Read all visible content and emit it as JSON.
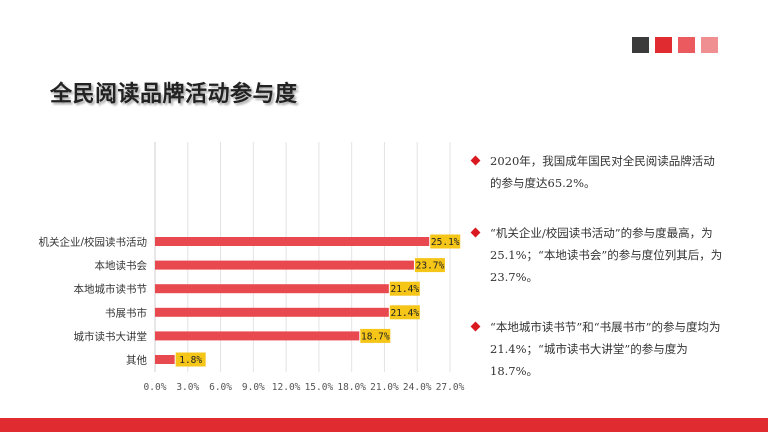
{
  "header": {
    "title": "全民阅读品牌活动参与度",
    "squares": [
      "#3b3b3b",
      "#e02b31",
      "#eb5a5f",
      "#f08f92"
    ]
  },
  "chart_data": {
    "type": "bar",
    "orientation": "horizontal",
    "categories": [
      "机关企业/校园读书活动",
      "本地读书会",
      "本地城市读书节",
      "书展书市",
      "城市读书大讲堂",
      "其他"
    ],
    "values": [
      25.1,
      23.7,
      21.4,
      21.4,
      18.7,
      1.8
    ],
    "data_labels": [
      "25.1%",
      "23.7%",
      "21.4%",
      "21.4%",
      "18.7%",
      "1.8%"
    ],
    "x_ticks": [
      "0.0%",
      "3.0%",
      "6.0%",
      "9.0%",
      "12.0%",
      "15.0%",
      "18.0%",
      "21.0%",
      "24.0%",
      "27.0%"
    ],
    "xlim": [
      0,
      27
    ],
    "grid": true,
    "bar_color": "#e8494f",
    "label_bg": "#f5c518"
  },
  "bullets": [
    "2020年，我国成年国民对全民阅读品牌活动的参与度达65.2%。",
    "“机关企业/校园读书活动”的参与度最高，为25.1%；“本地读书会”的参与度位列其后，为23.7%。",
    "“本地城市读书节”和“书展书市”的参与度均为21.4%；“城市读书大讲堂”的参与度为18.7%。"
  ],
  "footer": {
    "bar_color": "#e02b31"
  }
}
